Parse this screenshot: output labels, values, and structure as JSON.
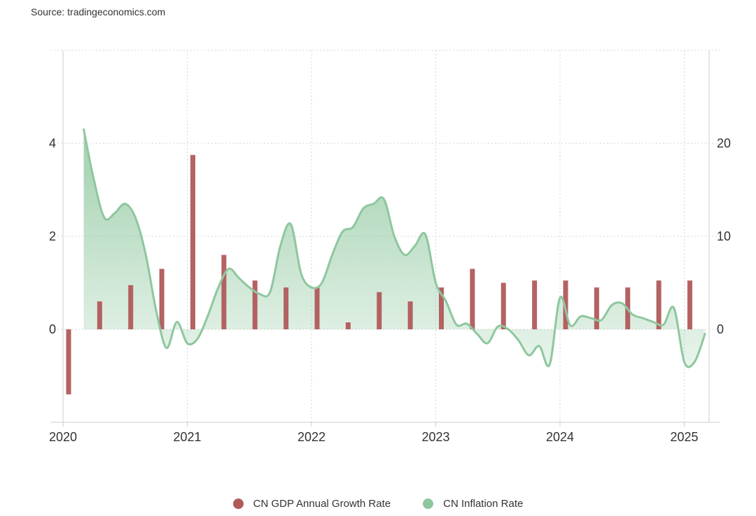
{
  "source": "Source: tradingeconomics.com",
  "colors": {
    "gdp": "#b05a5a",
    "inflation": "#8ec79e",
    "grid": "#d6d6d6",
    "axis": "#cccccc"
  },
  "legend": [
    {
      "label": "CN GDP Annual Growth Rate",
      "color": "#b05a5a"
    },
    {
      "label": "CN Inflation Rate",
      "color": "#8ec79e"
    }
  ],
  "chart_data": {
    "type": "bar+area",
    "x_ticks": [
      "2020",
      "2021",
      "2022",
      "2023",
      "2024",
      "2025"
    ],
    "left_axis": {
      "ticks": [
        0,
        2,
        4
      ],
      "range": [
        -2,
        6
      ]
    },
    "right_axis": {
      "ticks": [
        0,
        10,
        20
      ],
      "range": [
        -10,
        30
      ]
    },
    "grid": true,
    "legend_position": "bottom",
    "series": [
      {
        "name": "CN GDP Annual Growth Rate",
        "type": "bar",
        "axis": "left",
        "points": [
          {
            "x": "2020-Q1",
            "y": -1.4
          },
          {
            "x": "2020-Q2",
            "y": 0.6
          },
          {
            "x": "2020-Q3",
            "y": 0.95
          },
          {
            "x": "2020-Q4",
            "y": 1.3
          },
          {
            "x": "2021-Q1",
            "y": 3.75
          },
          {
            "x": "2021-Q2",
            "y": 1.6
          },
          {
            "x": "2021-Q3",
            "y": 1.05
          },
          {
            "x": "2021-Q4",
            "y": 0.9
          },
          {
            "x": "2022-Q1",
            "y": 0.9
          },
          {
            "x": "2022-Q2",
            "y": 0.15
          },
          {
            "x": "2022-Q3",
            "y": 0.8
          },
          {
            "x": "2022-Q4",
            "y": 0.6
          },
          {
            "x": "2023-Q1",
            "y": 0.9
          },
          {
            "x": "2023-Q2",
            "y": 1.3
          },
          {
            "x": "2023-Q3",
            "y": 1.0
          },
          {
            "x": "2023-Q4",
            "y": 1.05
          },
          {
            "x": "2024-Q1",
            "y": 1.05
          },
          {
            "x": "2024-Q2",
            "y": 0.9
          },
          {
            "x": "2024-Q3",
            "y": 0.9
          },
          {
            "x": "2024-Q4",
            "y": 1.05
          },
          {
            "x": "2025-Q1",
            "y": 1.05
          }
        ]
      },
      {
        "name": "CN Inflation Rate",
        "type": "area",
        "axis": "right",
        "points": [
          {
            "x": "2020-03",
            "y": 21.5
          },
          {
            "x": "2020-04",
            "y": 16
          },
          {
            "x": "2020-05",
            "y": 12
          },
          {
            "x": "2020-06",
            "y": 12.5
          },
          {
            "x": "2020-07",
            "y": 13.5
          },
          {
            "x": "2020-08",
            "y": 12
          },
          {
            "x": "2020-09",
            "y": 8
          },
          {
            "x": "2020-10",
            "y": 2
          },
          {
            "x": "2020-11",
            "y": -2
          },
          {
            "x": "2020-12",
            "y": 0.8
          },
          {
            "x": "2021-01",
            "y": -1.5
          },
          {
            "x": "2021-02",
            "y": -1
          },
          {
            "x": "2021-03",
            "y": 1.5
          },
          {
            "x": "2021-04",
            "y": 4.5
          },
          {
            "x": "2021-05",
            "y": 6.5
          },
          {
            "x": "2021-06",
            "y": 5.5
          },
          {
            "x": "2021-07",
            "y": 4.5
          },
          {
            "x": "2021-08",
            "y": 3.8
          },
          {
            "x": "2021-09",
            "y": 4
          },
          {
            "x": "2021-10",
            "y": 9
          },
          {
            "x": "2021-11",
            "y": 11.3
          },
          {
            "x": "2021-12",
            "y": 6
          },
          {
            "x": "2022-01",
            "y": 4.5
          },
          {
            "x": "2022-02",
            "y": 5
          },
          {
            "x": "2022-03",
            "y": 8
          },
          {
            "x": "2022-04",
            "y": 10.5
          },
          {
            "x": "2022-05",
            "y": 11
          },
          {
            "x": "2022-06",
            "y": 13
          },
          {
            "x": "2022-07",
            "y": 13.5
          },
          {
            "x": "2022-08",
            "y": 14
          },
          {
            "x": "2022-09",
            "y": 10
          },
          {
            "x": "2022-10",
            "y": 8
          },
          {
            "x": "2022-11",
            "y": 9
          },
          {
            "x": "2022-12",
            "y": 10.2
          },
          {
            "x": "2023-01",
            "y": 5
          },
          {
            "x": "2023-02",
            "y": 3
          },
          {
            "x": "2023-03",
            "y": 0.5
          },
          {
            "x": "2023-04",
            "y": 0.6
          },
          {
            "x": "2023-05",
            "y": -0.5
          },
          {
            "x": "2023-06",
            "y": -1.5
          },
          {
            "x": "2023-07",
            "y": 0.3
          },
          {
            "x": "2023-08",
            "y": 0
          },
          {
            "x": "2023-09",
            "y": -1.2
          },
          {
            "x": "2023-10",
            "y": -2.8
          },
          {
            "x": "2023-11",
            "y": -1.8
          },
          {
            "x": "2023-12",
            "y": -3.8
          },
          {
            "x": "2024-01",
            "y": 3.4
          },
          {
            "x": "2024-02",
            "y": 0.4
          },
          {
            "x": "2024-03",
            "y": 1.4
          },
          {
            "x": "2024-04",
            "y": 1.2
          },
          {
            "x": "2024-05",
            "y": 1
          },
          {
            "x": "2024-06",
            "y": 2.6
          },
          {
            "x": "2024-07",
            "y": 2.8
          },
          {
            "x": "2024-08",
            "y": 1.6
          },
          {
            "x": "2024-09",
            "y": 1.2
          },
          {
            "x": "2024-10",
            "y": 0.8
          },
          {
            "x": "2024-11",
            "y": 0.5
          },
          {
            "x": "2024-12",
            "y": 2.3
          },
          {
            "x": "2025-01",
            "y": -3.5
          },
          {
            "x": "2025-02",
            "y": -3.5
          },
          {
            "x": "2025-03",
            "y": -0.5
          }
        ]
      }
    ]
  }
}
